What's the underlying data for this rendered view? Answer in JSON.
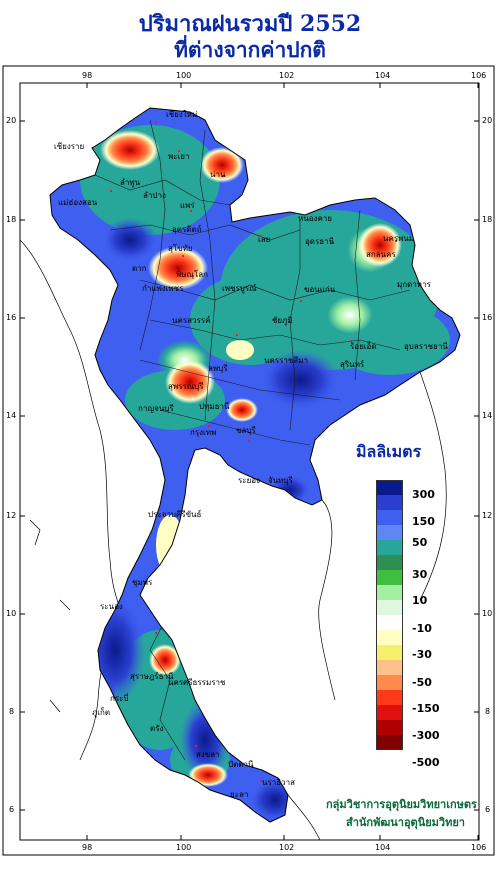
{
  "title": {
    "line1": "ปริมาณฝนรวมปี 2552",
    "line2": "ที่ต่างจากค่าปกติ"
  },
  "axes": {
    "x_ticks": [
      "98",
      "100",
      "102",
      "104",
      "106"
    ],
    "y_ticks": [
      "20",
      "18",
      "16",
      "14",
      "12",
      "10",
      "8",
      "6"
    ]
  },
  "legend": {
    "title": "มิลลิเมตร",
    "labels": [
      "300",
      "150",
      "50",
      "30",
      "10",
      "-10",
      "-30",
      "-50",
      "-150",
      "-300",
      "-500"
    ],
    "colors": [
      "#0a1a8c",
      "#2a3fd0",
      "#3e5ff0",
      "#5f86f5",
      "#27a69a",
      "#2f8f52",
      "#3fbe3f",
      "#a3f0a3",
      "#dff7df",
      "#ffffff",
      "#ffffc4",
      "#f7f06a",
      "#ffc08a",
      "#ff8a4a",
      "#ff3a1a",
      "#e01010",
      "#b00000",
      "#800000"
    ]
  },
  "places": [
    {
      "name": "เชียงราย"
    },
    {
      "name": "เชียงใหม่"
    },
    {
      "name": "แม่ฮ่องสอน"
    },
    {
      "name": "ลำปาง"
    },
    {
      "name": "พะเยา"
    },
    {
      "name": "น่าน"
    },
    {
      "name": "แพร่"
    },
    {
      "name": "ลำพูน"
    },
    {
      "name": "อุตรดิตถ์"
    },
    {
      "name": "ตาก"
    },
    {
      "name": "พิษณุโลก"
    },
    {
      "name": "สุโขทัย"
    },
    {
      "name": "กำแพงเพชร"
    },
    {
      "name": "เพชรบูรณ์"
    },
    {
      "name": "นครสวรรค์"
    },
    {
      "name": "เลย"
    },
    {
      "name": "หนองคาย"
    },
    {
      "name": "อุดรธานี"
    },
    {
      "name": "นครพนม"
    },
    {
      "name": "สกลนคร"
    },
    {
      "name": "มุกดาหาร"
    },
    {
      "name": "ขอนแก่น"
    },
    {
      "name": "ชัยภูมิ"
    },
    {
      "name": "ร้อยเอ็ด"
    },
    {
      "name": "อุบลราชธานี"
    },
    {
      "name": "สุรินทร์"
    },
    {
      "name": "นครราชสีมา"
    },
    {
      "name": "ลพบุรี"
    },
    {
      "name": "สุพรรณบุรี"
    },
    {
      "name": "กาญจนบุรี"
    },
    {
      "name": "ปทุมธานี"
    },
    {
      "name": "กรุงเทพ"
    },
    {
      "name": "ชลบุรี"
    },
    {
      "name": "ระยอง"
    },
    {
      "name": "จันทบุรี"
    },
    {
      "name": "ประจวบคีรีขันธ์"
    },
    {
      "name": "ชุมพร"
    },
    {
      "name": "ระนอง"
    },
    {
      "name": "สุราษฎร์ธานี"
    },
    {
      "name": "นครศรีธรรมราช"
    },
    {
      "name": "ภูเก็ต"
    },
    {
      "name": "กระบี่"
    },
    {
      "name": "ตรัง"
    },
    {
      "name": "สงขลา"
    },
    {
      "name": "ปัตตานี"
    },
    {
      "name": "นราธิวาส"
    },
    {
      "name": "ยะลา"
    }
  ],
  "credit": {
    "line1": "กลุ่มวิชาการอุตุนิยมวิทยาเกษตร",
    "line2": "สำนักพัฒนาอุตุนิยมวิทยา"
  }
}
